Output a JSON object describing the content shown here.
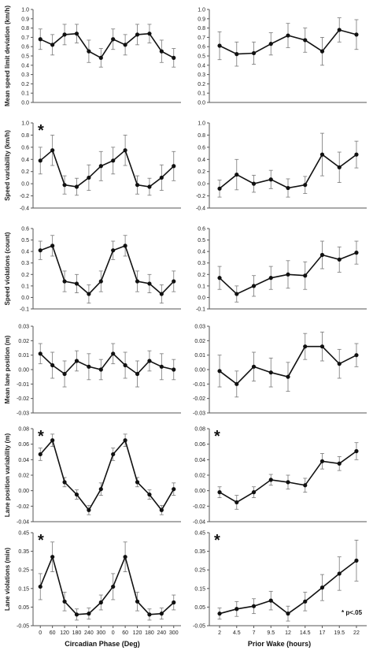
{
  "x_titles": {
    "left": "Circadian Phase (Deg)",
    "right": "Prior Wake (hours)"
  },
  "footnote": "* p<.05",
  "x_ticks": {
    "left": [
      "0",
      "60",
      "120",
      "180",
      "240",
      "300",
      "0",
      "60",
      "120",
      "180",
      "240",
      "300"
    ],
    "right": [
      "2",
      "4.5",
      "7",
      "9.5",
      "12",
      "14.5",
      "17",
      "19.5",
      "22"
    ]
  },
  "chart_data": [
    {
      "type": "line",
      "column": "left",
      "row": 0,
      "ylabel": "Mean  speed limit deviation (km/h)",
      "ylim": [
        0,
        1.0
      ],
      "step": 0.1,
      "decimals": 1,
      "significant": false,
      "x": [
        "0",
        "60",
        "120",
        "180",
        "240",
        "300",
        "0",
        "60",
        "120",
        "180",
        "240",
        "300"
      ],
      "y": [
        0.68,
        0.62,
        0.73,
        0.74,
        0.55,
        0.48,
        0.68,
        0.62,
        0.73,
        0.74,
        0.55,
        0.48
      ],
      "err": [
        0.11,
        0.11,
        0.11,
        0.1,
        0.12,
        0.1,
        0.11,
        0.11,
        0.11,
        0.1,
        0.12,
        0.1
      ]
    },
    {
      "type": "line",
      "column": "right",
      "row": 0,
      "ylabel": "",
      "ylim": [
        0,
        1.0
      ],
      "step": 0.1,
      "decimals": 1,
      "significant": false,
      "x": [
        "2",
        "4.5",
        "7",
        "9.5",
        "12",
        "14.5",
        "17",
        "19.5",
        "22"
      ],
      "y": [
        0.61,
        0.52,
        0.53,
        0.63,
        0.72,
        0.67,
        0.55,
        0.78,
        0.73
      ],
      "err": [
        0.15,
        0.13,
        0.12,
        0.12,
        0.13,
        0.13,
        0.15,
        0.13,
        0.16
      ]
    },
    {
      "type": "line",
      "column": "left",
      "row": 1,
      "ylabel": "Speed variability (km/h)",
      "ylim": [
        -0.4,
        1.0
      ],
      "step": 0.2,
      "decimals": 1,
      "significant": true,
      "x": [
        "0",
        "60",
        "120",
        "180",
        "240",
        "300",
        "0",
        "60",
        "120",
        "180",
        "240",
        "300"
      ],
      "y": [
        0.38,
        0.55,
        -0.02,
        -0.05,
        0.1,
        0.29,
        0.38,
        0.55,
        -0.02,
        -0.05,
        0.1,
        0.29
      ],
      "err": [
        0.22,
        0.25,
        0.15,
        0.14,
        0.21,
        0.24,
        0.22,
        0.25,
        0.15,
        0.14,
        0.21,
        0.24
      ]
    },
    {
      "type": "line",
      "column": "right",
      "row": 1,
      "ylabel": "",
      "ylim": [
        -0.4,
        1.0
      ],
      "step": 0.2,
      "decimals": 1,
      "significant": false,
      "x": [
        "2",
        "4.5",
        "7",
        "9.5",
        "12",
        "14.5",
        "17",
        "19.5",
        "22"
      ],
      "y": [
        -0.08,
        0.15,
        0.0,
        0.07,
        -0.07,
        -0.02,
        0.48,
        0.27,
        0.48
      ],
      "err": [
        0.14,
        0.25,
        0.14,
        0.15,
        0.15,
        0.14,
        0.35,
        0.25,
        0.22
      ]
    },
    {
      "type": "line",
      "column": "left",
      "row": 2,
      "ylabel": "Speed violations (count)",
      "ylim": [
        -0.1,
        0.6
      ],
      "step": 0.1,
      "decimals": 1,
      "significant": false,
      "x": [
        "0",
        "60",
        "120",
        "180",
        "240",
        "300",
        "0",
        "60",
        "120",
        "180",
        "240",
        "300"
      ],
      "y": [
        0.41,
        0.45,
        0.14,
        0.12,
        0.03,
        0.14,
        0.41,
        0.45,
        0.14,
        0.12,
        0.03,
        0.14
      ],
      "err": [
        0.08,
        0.09,
        0.09,
        0.08,
        0.08,
        0.09,
        0.08,
        0.09,
        0.09,
        0.08,
        0.08,
        0.09
      ]
    },
    {
      "type": "line",
      "column": "right",
      "row": 2,
      "ylabel": "",
      "ylim": [
        -0.1,
        0.6
      ],
      "step": 0.1,
      "decimals": 1,
      "significant": false,
      "x": [
        "2",
        "4.5",
        "7",
        "9.5",
        "12",
        "14.5",
        "17",
        "19.5",
        "22"
      ],
      "y": [
        0.17,
        0.03,
        0.1,
        0.17,
        0.2,
        0.19,
        0.37,
        0.33,
        0.39
      ],
      "err": [
        0.1,
        0.07,
        0.09,
        0.1,
        0.12,
        0.12,
        0.12,
        0.11,
        0.1
      ]
    },
    {
      "type": "line",
      "column": "left",
      "row": 3,
      "ylabel": "Mean lane position (m)",
      "ylim": [
        -0.03,
        0.03
      ],
      "step": 0.01,
      "decimals": 2,
      "significant": false,
      "x": [
        "0",
        "60",
        "120",
        "180",
        "240",
        "300",
        "0",
        "60",
        "120",
        "180",
        "240",
        "300"
      ],
      "y": [
        0.011,
        0.003,
        -0.003,
        0.006,
        0.002,
        0.0,
        0.011,
        0.003,
        -0.003,
        0.006,
        0.002,
        0.0
      ],
      "err": [
        0.007,
        0.009,
        0.009,
        0.007,
        0.009,
        0.007,
        0.007,
        0.009,
        0.009,
        0.007,
        0.009,
        0.007
      ]
    },
    {
      "type": "line",
      "column": "right",
      "row": 3,
      "ylabel": "",
      "ylim": [
        -0.03,
        0.03
      ],
      "step": 0.01,
      "decimals": 2,
      "significant": false,
      "x": [
        "2",
        "4.5",
        "7",
        "9.5",
        "12",
        "14.5",
        "17",
        "19.5",
        "22"
      ],
      "y": [
        -0.001,
        -0.01,
        0.002,
        -0.002,
        -0.005,
        0.016,
        0.016,
        0.004,
        0.01
      ],
      "err": [
        0.011,
        0.009,
        0.01,
        0.01,
        0.01,
        0.009,
        0.01,
        0.01,
        0.008
      ]
    },
    {
      "type": "line",
      "column": "left",
      "row": 4,
      "ylabel": "Lane position  variability (m)",
      "ylim": [
        -0.04,
        0.08
      ],
      "step": 0.02,
      "decimals": 2,
      "significant": true,
      "x": [
        "0",
        "60",
        "120",
        "180",
        "240",
        "300",
        "0",
        "60",
        "120",
        "180",
        "240",
        "300"
      ],
      "y": [
        0.047,
        0.065,
        0.011,
        -0.005,
        -0.025,
        0.002,
        0.047,
        0.065,
        0.011,
        -0.005,
        -0.025,
        0.002
      ],
      "err": [
        0.008,
        0.008,
        0.006,
        0.006,
        0.006,
        0.008,
        0.008,
        0.008,
        0.006,
        0.006,
        0.006,
        0.008
      ]
    },
    {
      "type": "line",
      "column": "right",
      "row": 4,
      "ylabel": "",
      "ylim": [
        -0.04,
        0.08
      ],
      "step": 0.02,
      "decimals": 2,
      "significant": true,
      "x": [
        "2",
        "4.5",
        "7",
        "9.5",
        "12",
        "14.5",
        "17",
        "19.5",
        "22"
      ],
      "y": [
        -0.002,
        -0.015,
        -0.002,
        0.014,
        0.011,
        0.007,
        0.038,
        0.035,
        0.051
      ],
      "err": [
        0.007,
        0.009,
        0.007,
        0.007,
        0.009,
        0.009,
        0.01,
        0.009,
        0.011
      ]
    },
    {
      "type": "line",
      "column": "left",
      "row": 5,
      "ylabel": "Lane violations (min)",
      "ylim": [
        -0.05,
        0.45
      ],
      "step": 0.1,
      "decimals": 2,
      "significant": true,
      "x": [
        "0",
        "60",
        "120",
        "180",
        "240",
        "300",
        "0",
        "60",
        "120",
        "180",
        "240",
        "300"
      ],
      "y": [
        0.16,
        0.32,
        0.08,
        0.01,
        0.015,
        0.075,
        0.16,
        0.32,
        0.08,
        0.01,
        0.015,
        0.075
      ],
      "err": [
        0.07,
        0.08,
        0.05,
        0.03,
        0.03,
        0.04,
        0.07,
        0.08,
        0.05,
        0.03,
        0.03,
        0.04
      ]
    },
    {
      "type": "line",
      "column": "right",
      "row": 5,
      "ylabel": "",
      "ylim": [
        -0.05,
        0.45
      ],
      "step": 0.1,
      "decimals": 2,
      "significant": true,
      "x": [
        "2",
        "4.5",
        "7",
        "9.5",
        "12",
        "14.5",
        "17",
        "19.5",
        "22"
      ],
      "y": [
        0.015,
        0.04,
        0.055,
        0.085,
        0.015,
        0.08,
        0.155,
        0.23,
        0.3
      ],
      "err": [
        0.03,
        0.04,
        0.04,
        0.05,
        0.04,
        0.05,
        0.07,
        0.09,
        0.11
      ]
    }
  ]
}
